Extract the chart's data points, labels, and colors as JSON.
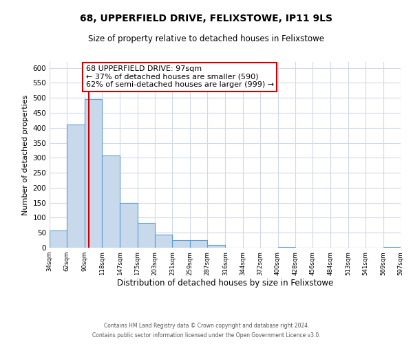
{
  "title": "68, UPPERFIELD DRIVE, FELIXSTOWE, IP11 9LS",
  "subtitle": "Size of property relative to detached houses in Felixstowe",
  "xlabel": "Distribution of detached houses by size in Felixstowe",
  "ylabel": "Number of detached properties",
  "bin_edges": [
    34,
    62,
    90,
    118,
    147,
    175,
    203,
    231,
    259,
    287,
    316,
    344,
    372,
    400,
    428,
    456,
    484,
    513,
    541,
    569,
    597
  ],
  "bar_heights": [
    57,
    410,
    495,
    307,
    150,
    82,
    43,
    25,
    25,
    10,
    0,
    0,
    0,
    3,
    0,
    0,
    0,
    0,
    0,
    3
  ],
  "bar_color": "#c8d9ec",
  "bar_edge_color": "#5b9bd5",
  "property_size": 97,
  "property_line_color": "#cc0000",
  "annotation_text_line1": "68 UPPERFIELD DRIVE: 97sqm",
  "annotation_text_line2": "← 37% of detached houses are smaller (590)",
  "annotation_text_line3": "62% of semi-detached houses are larger (999) →",
  "annotation_box_color": "#ffffff",
  "annotation_box_edge_color": "#cc0000",
  "ylim": [
    0,
    620
  ],
  "yticks": [
    0,
    50,
    100,
    150,
    200,
    250,
    300,
    350,
    400,
    450,
    500,
    550,
    600
  ],
  "background_color": "#ffffff",
  "grid_color": "#d0d8e8",
  "footer_line1": "Contains HM Land Registry data © Crown copyright and database right 2024.",
  "footer_line2": "Contains public sector information licensed under the Open Government Licence v3.0."
}
